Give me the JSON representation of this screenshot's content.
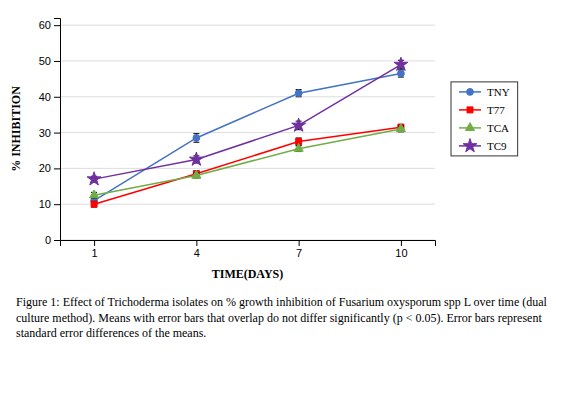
{
  "chart_data": {
    "type": "line",
    "xlabel": "TIME(DAYS)",
    "ylabel": "% INHIBITION",
    "caption": "Figure 1: Effect of Trichoderma isolates on % growth inhibition of Fusarium oxysporum spp L over time (dual culture method). Means with error bars that overlap do not differ significantly (p < 0.05). Error bars represent standard error differences of the means.",
    "x": [
      1,
      4,
      7,
      10
    ],
    "series": [
      {
        "name": "TNY",
        "color": "#4472C4",
        "marker": "circle",
        "values": [
          11,
          28.5,
          41,
          46.5
        ],
        "errors": [
          1.0,
          1.2,
          1.0,
          1.0
        ]
      },
      {
        "name": "T77",
        "color": "#FF0000",
        "marker": "square",
        "values": [
          10,
          18.5,
          27.5,
          31.5
        ],
        "errors": [
          0.8,
          0.8,
          1.0,
          0.8
        ]
      },
      {
        "name": "TCA",
        "color": "#70AD47",
        "marker": "triangle",
        "values": [
          12.5,
          18,
          25.5,
          31
        ],
        "errors": [
          0.8,
          0.7,
          0.8,
          0.8
        ]
      },
      {
        "name": "TC9",
        "color": "#7030A0",
        "marker": "star",
        "values": [
          17,
          22.5,
          32,
          49
        ],
        "errors": [
          0.8,
          1.0,
          1.2,
          1.2
        ]
      }
    ],
    "xlim": [
      0,
      11
    ],
    "xticks": [
      1,
      4,
      7,
      10
    ],
    "ylim": [
      0,
      62
    ],
    "yticks": [
      0,
      10,
      20,
      30,
      40,
      50,
      60
    ],
    "grid": true,
    "legend": "right"
  }
}
